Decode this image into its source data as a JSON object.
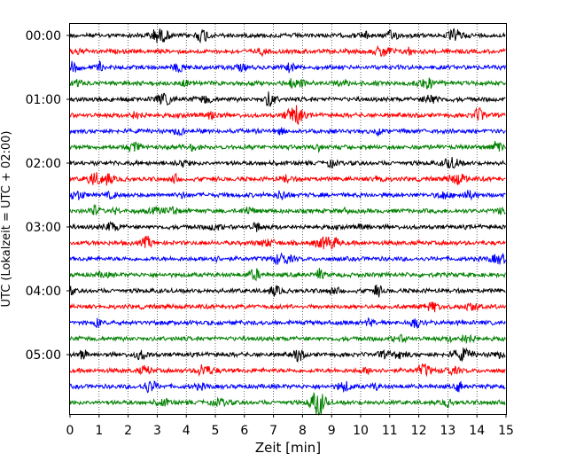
{
  "chart_data": {
    "type": "line",
    "title": "",
    "xlabel": "Zeit  [min]",
    "ylabel": "UTC (Lokalzeit = UTC + 02:00)",
    "xlim": [
      0,
      15
    ],
    "x_ticks": [
      "0",
      "1",
      "2",
      "3",
      "4",
      "5",
      "6",
      "7",
      "8",
      "9",
      "10",
      "11",
      "12",
      "13",
      "14",
      "15"
    ],
    "y_tick_labels": [
      "00:00",
      "01:00",
      "02:00",
      "03:00",
      "04:00",
      "05:00"
    ],
    "grid": "vertical dotted lines at each minute",
    "trace_interval_min": 15,
    "colors": [
      "#000000",
      "#ff0000",
      "#0000ff",
      "#008000"
    ],
    "series": [
      {
        "start": "00:00",
        "color": "#000000"
      },
      {
        "start": "00:15",
        "color": "#ff0000"
      },
      {
        "start": "00:30",
        "color": "#0000ff"
      },
      {
        "start": "00:45",
        "color": "#008000"
      },
      {
        "start": "01:00",
        "color": "#000000"
      },
      {
        "start": "01:15",
        "color": "#ff0000"
      },
      {
        "start": "01:30",
        "color": "#0000ff"
      },
      {
        "start": "01:45",
        "color": "#008000"
      },
      {
        "start": "02:00",
        "color": "#000000"
      },
      {
        "start": "02:15",
        "color": "#ff0000"
      },
      {
        "start": "02:30",
        "color": "#0000ff"
      },
      {
        "start": "02:45",
        "color": "#008000"
      },
      {
        "start": "03:00",
        "color": "#000000"
      },
      {
        "start": "03:15",
        "color": "#ff0000"
      },
      {
        "start": "03:30",
        "color": "#0000ff"
      },
      {
        "start": "03:45",
        "color": "#008000"
      },
      {
        "start": "04:00",
        "color": "#000000"
      },
      {
        "start": "04:15",
        "color": "#ff0000"
      },
      {
        "start": "04:30",
        "color": "#0000ff"
      },
      {
        "start": "04:45",
        "color": "#008000"
      },
      {
        "start": "05:00",
        "color": "#000000"
      },
      {
        "start": "05:15",
        "color": "#ff0000"
      },
      {
        "start": "05:30",
        "color": "#0000ff"
      },
      {
        "start": "05:45",
        "color": "#008000"
      }
    ]
  }
}
